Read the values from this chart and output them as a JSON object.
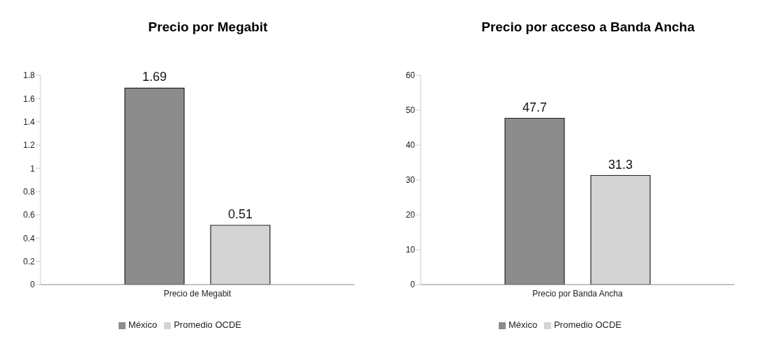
{
  "chart_data": [
    {
      "type": "bar",
      "title": "Precio por Megabit",
      "categories": [
        "Precio de Megabit"
      ],
      "series": [
        {
          "name": "México",
          "color": "#8c8c8c",
          "values": [
            1.69
          ]
        },
        {
          "name": "Promedio OCDE",
          "color": "#d4d4d4",
          "values": [
            0.51
          ]
        }
      ],
      "ylim": [
        0,
        1.8
      ],
      "yticks": [
        0,
        0.2,
        0.4,
        0.6,
        0.8,
        1,
        1.2,
        1.4,
        1.6,
        1.8
      ],
      "data_labels": true,
      "legend": "bottom"
    },
    {
      "type": "bar",
      "title": "Precio por acceso a Banda Ancha",
      "categories": [
        "Precio por Banda Ancha"
      ],
      "series": [
        {
          "name": "México",
          "color": "#8c8c8c",
          "values": [
            47.7
          ]
        },
        {
          "name": "Promedio OCDE",
          "color": "#d4d4d4",
          "values": [
            31.3
          ]
        }
      ],
      "ylim": [
        0,
        60
      ],
      "yticks": [
        0,
        10,
        20,
        30,
        40,
        50,
        60
      ],
      "data_labels": true,
      "legend": "bottom"
    }
  ]
}
